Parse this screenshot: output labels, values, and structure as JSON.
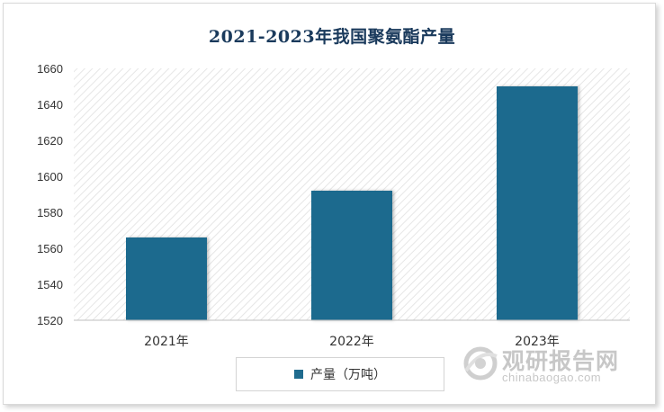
{
  "chart_data": {
    "type": "bar",
    "title": "2021-2023年我国聚氨酯产量",
    "categories": [
      "2021年",
      "2022年",
      "2023年"
    ],
    "series": [
      {
        "name": "产量（万吨）",
        "values": [
          1566,
          1592,
          1650
        ]
      }
    ],
    "ylim": [
      1520,
      1660
    ],
    "yticks": [
      1520,
      1540,
      1560,
      1580,
      1600,
      1620,
      1640,
      1660
    ],
    "grid": false,
    "legend": "bottom",
    "colors": {
      "bar": "#1f6b8e",
      "axis": "#bfbfbf",
      "plot_pattern": "#e3e3e3"
    }
  },
  "watermark": {
    "name": "观研报告网",
    "url": "chinabaogao.com"
  }
}
